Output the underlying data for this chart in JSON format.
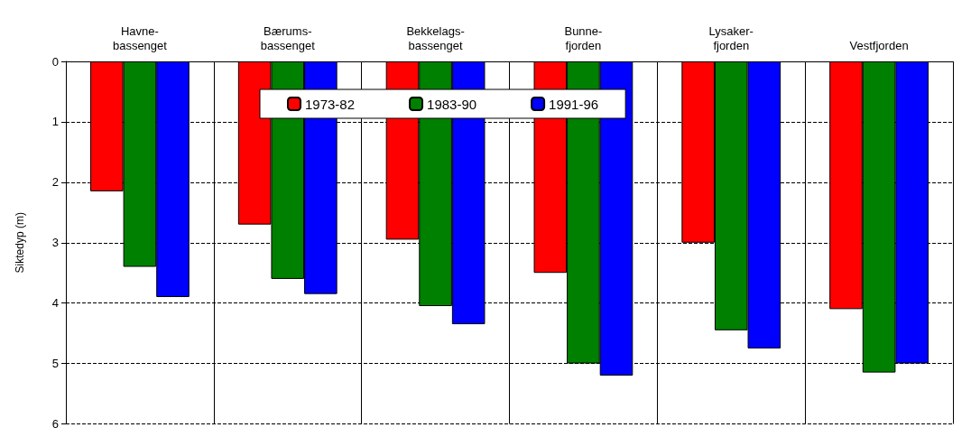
{
  "chart_data": {
    "type": "bar",
    "ylabel": "Siktedyp (m)",
    "categories": [
      "Havne-\nbassenget",
      "Bærums-\nbassenget",
      "Bekkelags-\nbassenget",
      "Bunne-\nfjorden",
      "Lysaker-\nfjorden",
      "Vestfjorden"
    ],
    "series": [
      {
        "name": "1973-82",
        "color": "#ff0000",
        "values": [
          2.15,
          2.7,
          2.95,
          3.5,
          3.0,
          4.1
        ]
      },
      {
        "name": "1983-90",
        "color": "#008000",
        "values": [
          3.4,
          3.6,
          4.05,
          5.0,
          4.45,
          5.15
        ]
      },
      {
        "name": "1991-96",
        "color": "#0000ff",
        "values": [
          3.9,
          3.85,
          4.35,
          5.2,
          4.75,
          5.0
        ]
      }
    ],
    "ylim": [
      6,
      0
    ],
    "yticks": [
      0,
      1,
      2,
      3,
      4,
      5,
      6
    ],
    "grid": true,
    "legend": "top"
  }
}
